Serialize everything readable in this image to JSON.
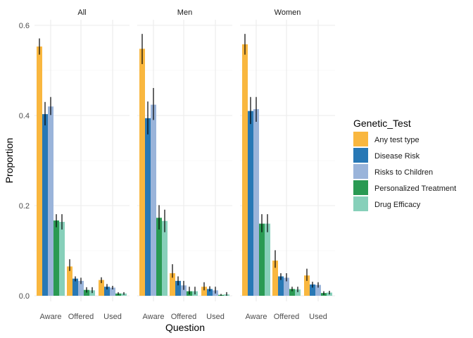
{
  "chart_data": {
    "type": "bar",
    "xlabel": "Question",
    "ylabel": "Proportion",
    "ylim": [
      0,
      0.62
    ],
    "yticks": [
      "0.0",
      "0.2",
      "0.4",
      "0.6"
    ],
    "categories": [
      "Aware",
      "Offered",
      "Used"
    ],
    "legend_title": "Genetic_Test",
    "legend_position": "right",
    "grid": true,
    "colors": {
      "Any test type": "#F9B73F",
      "Disease Risk": "#2878B5",
      "Risks to Children": "#9AB4DA",
      "Personalized Treatment": "#2A9A53",
      "Drug Efficacy": "#87D0BA"
    },
    "series_names": [
      "Any test type",
      "Disease Risk",
      "Risks to Children",
      "Personalized Treatment",
      "Drug Efficacy"
    ],
    "facets": [
      {
        "label": "All",
        "series": [
          {
            "name": "Any test type",
            "values": [
              0.553,
              0.065,
              0.035
            ],
            "err_low": [
              0.535,
              0.055,
              0.028
            ],
            "err_high": [
              0.571,
              0.081,
              0.041
            ]
          },
          {
            "name": "Disease Risk",
            "values": [
              0.403,
              0.038,
              0.02
            ],
            "err_low": [
              0.378,
              0.032,
              0.014
            ],
            "err_high": [
              0.43,
              0.043,
              0.026
            ]
          },
          {
            "name": "Risks to Children",
            "values": [
              0.42,
              0.033,
              0.018
            ],
            "err_low": [
              0.401,
              0.026,
              0.014
            ],
            "err_high": [
              0.441,
              0.04,
              0.022
            ]
          },
          {
            "name": "Personalized Treatment",
            "values": [
              0.167,
              0.013,
              0.005
            ],
            "err_low": [
              0.152,
              0.007,
              0.002
            ],
            "err_high": [
              0.181,
              0.019,
              0.008
            ]
          },
          {
            "name": "Drug Efficacy",
            "values": [
              0.164,
              0.012,
              0.005
            ],
            "err_low": [
              0.147,
              0.006,
              0.002
            ],
            "err_high": [
              0.181,
              0.019,
              0.008
            ]
          }
        ]
      },
      {
        "label": "Men",
        "series": [
          {
            "name": "Any test type",
            "values": [
              0.548,
              0.05,
              0.02
            ],
            "err_low": [
              0.514,
              0.04,
              0.012
            ],
            "err_high": [
              0.581,
              0.07,
              0.03
            ]
          },
          {
            "name": "Disease Risk",
            "values": [
              0.394,
              0.033,
              0.015
            ],
            "err_low": [
              0.358,
              0.023,
              0.01
            ],
            "err_high": [
              0.431,
              0.043,
              0.021
            ]
          },
          {
            "name": "Risks to Children",
            "values": [
              0.424,
              0.023,
              0.012
            ],
            "err_low": [
              0.39,
              0.013,
              0.005
            ],
            "err_high": [
              0.461,
              0.033,
              0.02
            ]
          },
          {
            "name": "Personalized Treatment",
            "values": [
              0.173,
              0.01,
              0.002
            ],
            "err_low": [
              0.147,
              0.003,
              0.0
            ],
            "err_high": [
              0.201,
              0.02,
              0.004
            ]
          },
          {
            "name": "Drug Efficacy",
            "values": [
              0.166,
              0.01,
              0.003
            ],
            "err_low": [
              0.141,
              0.003,
              0.0
            ],
            "err_high": [
              0.191,
              0.02,
              0.008
            ]
          }
        ]
      },
      {
        "label": "Women",
        "series": [
          {
            "name": "Any test type",
            "values": [
              0.558,
              0.078,
              0.045
            ],
            "err_low": [
              0.535,
              0.062,
              0.033
            ],
            "err_high": [
              0.581,
              0.101,
              0.06
            ]
          },
          {
            "name": "Disease Risk",
            "values": [
              0.41,
              0.043,
              0.025
            ],
            "err_low": [
              0.381,
              0.035,
              0.018
            ],
            "err_high": [
              0.441,
              0.05,
              0.031
            ]
          },
          {
            "name": "Risks to Children",
            "values": [
              0.414,
              0.04,
              0.024
            ],
            "err_low": [
              0.386,
              0.032,
              0.018
            ],
            "err_high": [
              0.441,
              0.05,
              0.03
            ]
          },
          {
            "name": "Personalized Treatment",
            "values": [
              0.16,
              0.015,
              0.006
            ],
            "err_low": [
              0.141,
              0.01,
              0.002
            ],
            "err_high": [
              0.181,
              0.02,
              0.01
            ]
          },
          {
            "name": "Drug Efficacy",
            "values": [
              0.16,
              0.014,
              0.007
            ],
            "err_low": [
              0.141,
              0.008,
              0.003
            ],
            "err_high": [
              0.181,
              0.02,
              0.011
            ]
          }
        ]
      }
    ]
  }
}
